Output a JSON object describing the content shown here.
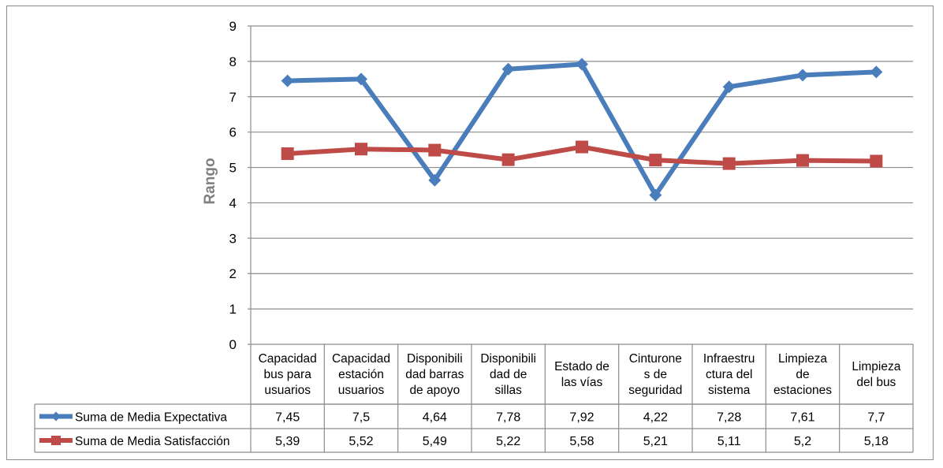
{
  "chart_data": {
    "type": "line",
    "ylabel": "Rango",
    "ylim": [
      0,
      9
    ],
    "yticks": [
      "0",
      "1",
      "2",
      "3",
      "4",
      "5",
      "6",
      "7",
      "8",
      "9"
    ],
    "grid": true,
    "legend_placement": "data-table",
    "categories": [
      [
        "Capacidad",
        "bus para",
        "usuarios"
      ],
      [
        "Capacidad",
        "estación",
        "usuarios"
      ],
      [
        "Disponibili",
        "dad barras",
        "de apoyo"
      ],
      [
        "Disponibili",
        "dad de",
        "sillas"
      ],
      [
        "Estado de",
        "las vías"
      ],
      [
        "Cinturone",
        "s de",
        "seguridad"
      ],
      [
        "Infraestru",
        "ctura del",
        "sistema"
      ],
      [
        "Limpieza",
        "de",
        "estaciones"
      ],
      [
        "Limpieza",
        "del bus"
      ]
    ],
    "series": [
      {
        "name": "Suma de Media Expectativa",
        "color": "#4a7ebb",
        "marker": "diamond",
        "values": [
          7.45,
          7.5,
          4.64,
          7.78,
          7.92,
          4.22,
          7.28,
          7.61,
          7.7
        ],
        "labels": [
          "7,45",
          "7,5",
          "4,64",
          "7,78",
          "7,92",
          "4,22",
          "7,28",
          "7,61",
          "7,7"
        ]
      },
      {
        "name": "Suma de Media Satisfacción",
        "color": "#be4b48",
        "marker": "square",
        "values": [
          5.39,
          5.52,
          5.49,
          5.22,
          5.58,
          5.21,
          5.11,
          5.2,
          5.18
        ],
        "labels": [
          "5,39",
          "5,52",
          "5,49",
          "5,22",
          "5,58",
          "5,21",
          "5,11",
          "5,2",
          "5,18"
        ]
      }
    ]
  }
}
